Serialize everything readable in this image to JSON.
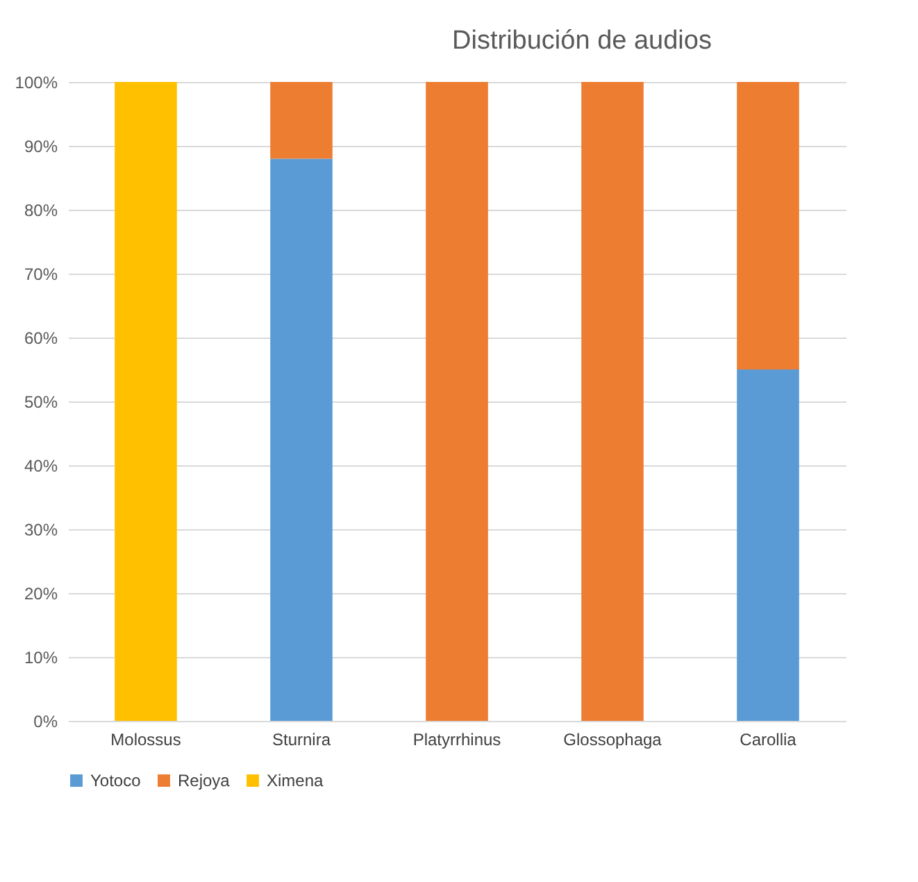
{
  "chart_data": {
    "type": "bar",
    "title": "Distribución de audios",
    "stacked": true,
    "categories": [
      "Molossus",
      "Sturnira",
      "Platyrrhinus",
      "Glossophaga",
      "Carollia"
    ],
    "series": [
      {
        "name": "Yotoco",
        "color": "#5b9bd5",
        "values": [
          0,
          88,
          0,
          0,
          55
        ]
      },
      {
        "name": "Rejoya",
        "color": "#ed7d31",
        "values": [
          0,
          12,
          100,
          100,
          45
        ]
      },
      {
        "name": "Ximena",
        "color": "#ffc000",
        "values": [
          100,
          0,
          0,
          0,
          0
        ]
      }
    ],
    "ylim": [
      0,
      100
    ],
    "yticks": [
      {
        "value": 0,
        "label": "0%"
      },
      {
        "value": 10,
        "label": "10%"
      },
      {
        "value": 20,
        "label": "20%"
      },
      {
        "value": 30,
        "label": "30%"
      },
      {
        "value": 40,
        "label": "40%"
      },
      {
        "value": 50,
        "label": "50%"
      },
      {
        "value": 60,
        "label": "60%"
      },
      {
        "value": 70,
        "label": "70%"
      },
      {
        "value": 80,
        "label": "80%"
      },
      {
        "value": 90,
        "label": "90%"
      },
      {
        "value": 100,
        "label": "100%"
      }
    ],
    "grid": "y",
    "legend": "bottom"
  }
}
